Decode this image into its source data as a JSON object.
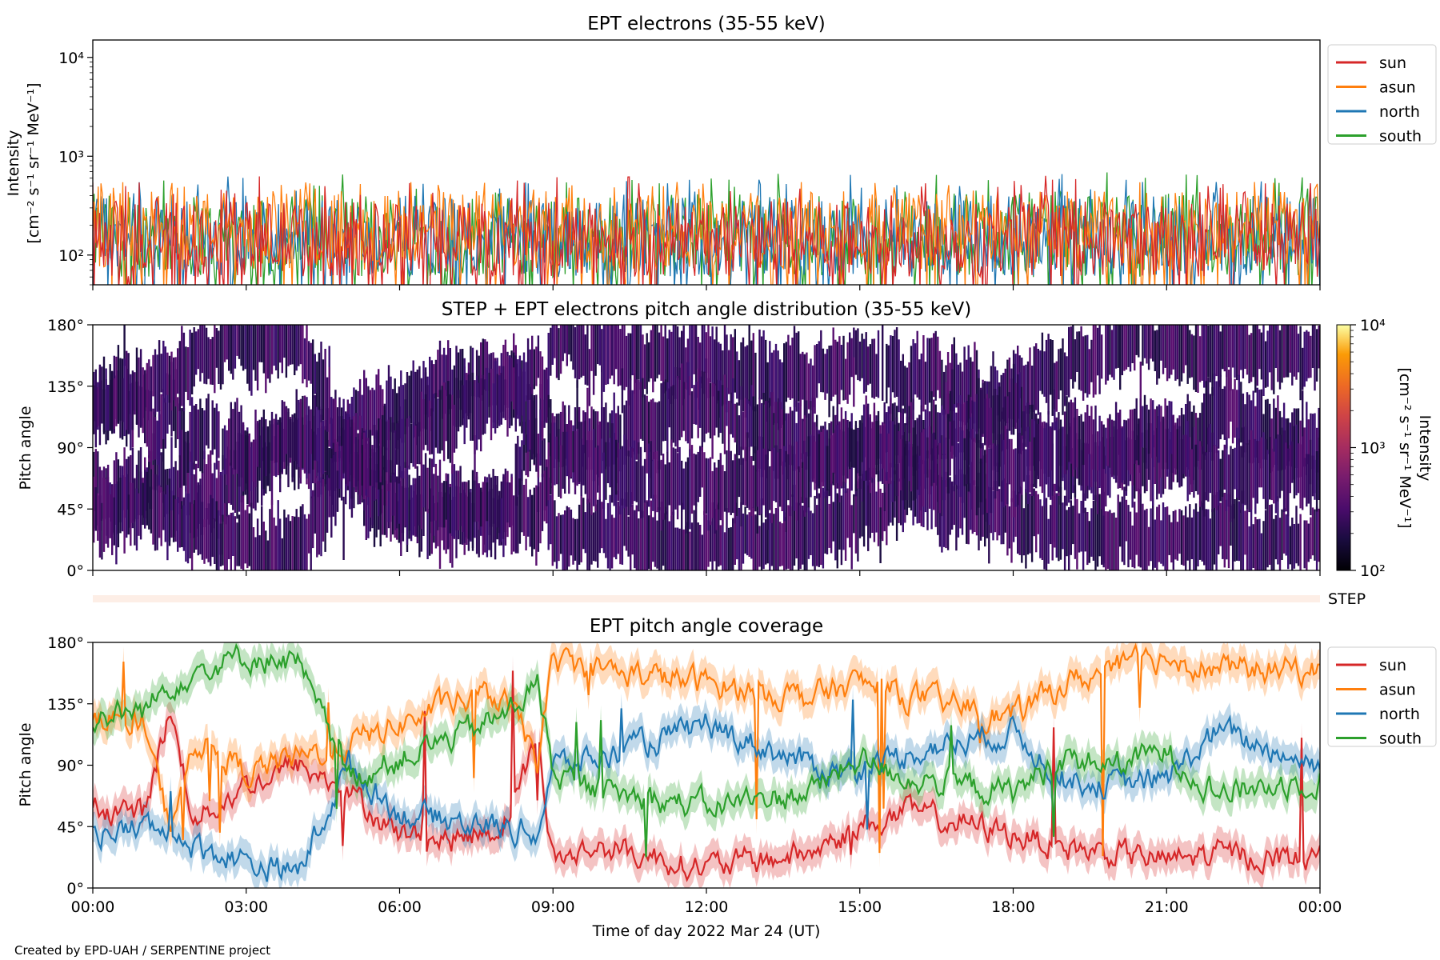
{
  "footer": "Created by EPD-UAH / SERPENTINE project",
  "colors": {
    "sun": "#d62728",
    "asun": "#ff7f0e",
    "north": "#1f77b4",
    "south": "#2ca02c"
  },
  "chart_data": [
    {
      "type": "line",
      "title": "EPT electrons (35-55 keV)",
      "ylabel": "Intensity",
      "ylabel_units": "[cm⁻² s⁻¹ sr⁻¹ MeV⁻¹]",
      "yscale": "log",
      "ylim": [
        50,
        15000
      ],
      "yticks": [
        "10²",
        "10³",
        "10⁴"
      ],
      "x_ticks": [
        "00:00",
        "03:00",
        "06:00",
        "09:00",
        "12:00",
        "15:00",
        "18:00",
        "21:00",
        "00:00"
      ],
      "legend": "top-right outside",
      "series": [
        {
          "name": "sun",
          "typical_range": [
            60,
            350
          ],
          "peak": 650
        },
        {
          "name": "asun",
          "typical_range": [
            70,
            450
          ],
          "peak": 550
        },
        {
          "name": "north",
          "typical_range": [
            60,
            400
          ],
          "peak": 680
        },
        {
          "name": "south",
          "typical_range": [
            60,
            420
          ],
          "peak": 690
        }
      ]
    },
    {
      "type": "heatmap",
      "title": "STEP + EPT electrons pitch angle distribution (35-55 keV)",
      "ylabel": "Pitch angle",
      "yticks": [
        "0°",
        "45°",
        "90°",
        "135°",
        "180°"
      ],
      "ylim": [
        0,
        180
      ],
      "x_ticks": [
        "00:00",
        "03:00",
        "06:00",
        "09:00",
        "12:00",
        "15:00",
        "18:00",
        "21:00",
        "00:00"
      ],
      "colorbar": {
        "label": "Intensity",
        "units": "[cm⁻² s⁻¹ sr⁻¹ MeV⁻¹]",
        "scale": "log",
        "range": [
          100,
          10000
        ],
        "ticks": [
          "10²",
          "10³",
          "10⁴"
        ],
        "colormap": "inferno"
      }
    },
    {
      "type": "strip",
      "label": "STEP"
    },
    {
      "type": "line",
      "title": "EPT pitch angle coverage",
      "ylabel": "Pitch angle",
      "yticks": [
        "0°",
        "45°",
        "90°",
        "135°",
        "180°"
      ],
      "ylim": [
        0,
        180
      ],
      "xlabel": "Time of day 2022 Mar 24 (UT)",
      "x_ticks": [
        "00:00",
        "03:00",
        "06:00",
        "09:00",
        "12:00",
        "15:00",
        "18:00",
        "21:00",
        "00:00"
      ],
      "legend": "top-right outside",
      "series": [
        {
          "name": "sun",
          "x_hours": [
            0,
            1,
            1.5,
            2,
            3,
            4,
            5,
            6,
            7,
            8,
            8.7,
            9,
            10,
            12,
            14,
            15,
            16,
            18,
            19,
            20,
            21,
            22,
            24
          ],
          "values": [
            60,
            55,
            130,
            50,
            75,
            90,
            70,
            40,
            35,
            45,
            110,
            20,
            30,
            15,
            25,
            45,
            55,
            40,
            30,
            25,
            20,
            25,
            20
          ]
        },
        {
          "name": "asun",
          "x_hours": [
            0,
            1,
            1.5,
            2,
            3,
            4,
            5,
            6,
            7,
            8,
            8.7,
            9,
            10,
            12,
            14,
            15,
            16,
            18,
            19,
            20,
            21,
            22,
            24
          ],
          "values": [
            130,
            120,
            45,
            110,
            85,
            95,
            105,
            120,
            135,
            140,
            95,
            165,
            160,
            150,
            140,
            150,
            140,
            125,
            150,
            160,
            170,
            160,
            160
          ]
        },
        {
          "name": "north",
          "x_hours": [
            0,
            1,
            1.5,
            2,
            3,
            4,
            5,
            6,
            7,
            8,
            8.7,
            9,
            10,
            12,
            14,
            15,
            16,
            18,
            19,
            20,
            21,
            22,
            24
          ],
          "values": [
            40,
            45,
            40,
            30,
            20,
            10,
            90,
            55,
            50,
            45,
            40,
            90,
            95,
            120,
            90,
            85,
            100,
            115,
            80,
            75,
            80,
            115,
            90
          ]
        },
        {
          "name": "south",
          "x_hours": [
            0,
            1,
            1.5,
            2,
            3,
            4,
            5,
            6,
            7,
            8,
            8.7,
            9,
            10,
            12,
            14,
            15,
            16,
            18,
            19,
            20,
            21,
            22,
            24
          ],
          "values": [
            125,
            130,
            150,
            160,
            170,
            165,
            80,
            95,
            110,
            125,
            150,
            85,
            70,
            60,
            70,
            95,
            80,
            70,
            95,
            90,
            100,
            70,
            80
          ]
        }
      ]
    }
  ]
}
